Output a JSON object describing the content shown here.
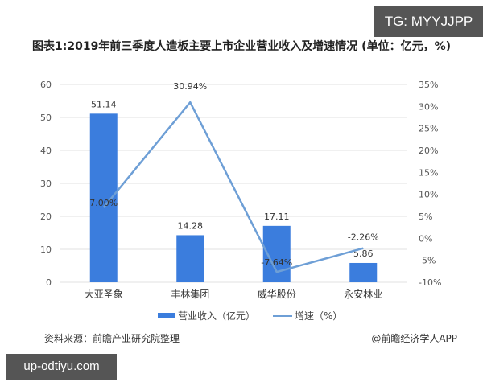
{
  "title": "图表1:2019年前三季度人造板主要上市企业营业收入及增速情况 (单位：亿元，%)",
  "badges": {
    "tg": "TG: MYYJJPP",
    "url": "up-odtiyu.com"
  },
  "legend": {
    "bar": "营业收入（亿元）",
    "line": "增速（%）"
  },
  "source": "资料来源：前瞻产业研究院整理",
  "credit": "@前瞻经济学人APP",
  "colors": {
    "bar": "#3b7ddd",
    "line": "#6e9fd6",
    "grid": "#e0e0e0"
  },
  "left_ticks": [
    "60",
    "50",
    "40",
    "30",
    "20",
    "10",
    "0"
  ],
  "right_ticks": [
    "35%",
    "30%",
    "25%",
    "20%",
    "15%",
    "10%",
    "5%",
    "0%",
    "-5%",
    "-10%"
  ],
  "chart_data": {
    "type": "bar+line",
    "title": "图表1:2019年前三季度人造板主要上市企业营业收入及增速情况 (单位：亿元，%)",
    "categories": [
      "大亚圣象",
      "丰林集团",
      "威华股份",
      "永安林业"
    ],
    "series": [
      {
        "name": "营业收入（亿元）",
        "type": "bar",
        "axis": "left",
        "values": [
          51.14,
          14.28,
          17.11,
          5.86
        ],
        "labels": [
          "51.14",
          "14.28",
          "17.11",
          "5.86"
        ]
      },
      {
        "name": "增速（%）",
        "type": "line",
        "axis": "right",
        "values": [
          7.0,
          30.94,
          -7.64,
          -2.26
        ],
        "labels": [
          "7.00%",
          "30.94%",
          "-7.64%",
          "-2.26%"
        ]
      }
    ],
    "ylim_left": [
      0,
      60
    ],
    "ylim_right": [
      -10,
      35
    ],
    "grid": true,
    "legend_position": "bottom"
  }
}
